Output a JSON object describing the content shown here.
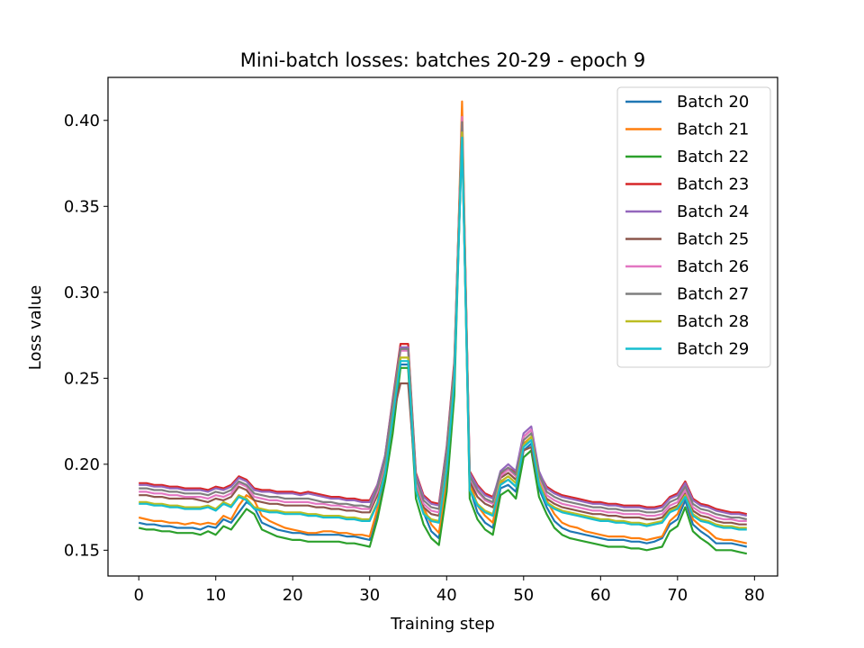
{
  "chart_data": {
    "type": "line",
    "title": "Mini-batch losses: batches 20-29 - epoch 9",
    "xlabel": "Training step",
    "ylabel": "Loss value",
    "xlim": [
      -4,
      83
    ],
    "ylim": [
      0.135,
      0.425
    ],
    "xticks": [
      0,
      10,
      20,
      30,
      40,
      50,
      60,
      70,
      80
    ],
    "yticks": [
      0.15,
      0.2,
      0.25,
      0.3,
      0.35,
      0.4
    ],
    "xtick_labels": [
      "0",
      "10",
      "20",
      "30",
      "40",
      "50",
      "60",
      "70",
      "80"
    ],
    "ytick_labels": [
      "0.15",
      "0.20",
      "0.25",
      "0.30",
      "0.35",
      "0.40"
    ],
    "legend_position": "top-right",
    "grid": false,
    "x": [
      0,
      1,
      2,
      3,
      4,
      5,
      6,
      7,
      8,
      9,
      10,
      11,
      12,
      13,
      14,
      15,
      16,
      17,
      18,
      19,
      20,
      21,
      22,
      23,
      24,
      25,
      26,
      27,
      28,
      29,
      30,
      31,
      32,
      33,
      34,
      35,
      36,
      37,
      38,
      39,
      40,
      41,
      42,
      43,
      44,
      45,
      46,
      47,
      48,
      49,
      50,
      51,
      52,
      53,
      54,
      55,
      56,
      57,
      58,
      59,
      60,
      61,
      62,
      63,
      64,
      65,
      66,
      67,
      68,
      69,
      70,
      71,
      72,
      73,
      74,
      75,
      76,
      77,
      78,
      79
    ],
    "series": [
      {
        "name": "Batch 20",
        "color": "#1f77b4",
        "values": [
          0.166,
          0.165,
          0.165,
          0.164,
          0.164,
          0.163,
          0.163,
          0.163,
          0.162,
          0.164,
          0.163,
          0.168,
          0.166,
          0.172,
          0.178,
          0.175,
          0.166,
          0.164,
          0.162,
          0.161,
          0.16,
          0.16,
          0.159,
          0.159,
          0.159,
          0.159,
          0.159,
          0.158,
          0.158,
          0.157,
          0.156,
          0.172,
          0.196,
          0.222,
          0.258,
          0.258,
          0.188,
          0.172,
          0.161,
          0.157,
          0.188,
          0.246,
          0.404,
          0.186,
          0.172,
          0.166,
          0.163,
          0.186,
          0.188,
          0.184,
          0.208,
          0.212,
          0.186,
          0.175,
          0.167,
          0.163,
          0.161,
          0.16,
          0.159,
          0.158,
          0.157,
          0.156,
          0.156,
          0.156,
          0.155,
          0.155,
          0.154,
          0.155,
          0.157,
          0.165,
          0.168,
          0.179,
          0.165,
          0.161,
          0.158,
          0.154,
          0.154,
          0.154,
          0.153,
          0.152
        ]
      },
      {
        "name": "Batch 21",
        "color": "#ff7f0e",
        "values": [
          0.169,
          0.168,
          0.167,
          0.167,
          0.166,
          0.166,
          0.165,
          0.166,
          0.165,
          0.166,
          0.165,
          0.17,
          0.168,
          0.176,
          0.182,
          0.179,
          0.17,
          0.167,
          0.165,
          0.163,
          0.162,
          0.161,
          0.16,
          0.16,
          0.161,
          0.161,
          0.16,
          0.16,
          0.159,
          0.159,
          0.158,
          0.174,
          0.198,
          0.223,
          0.262,
          0.262,
          0.191,
          0.175,
          0.165,
          0.16,
          0.19,
          0.25,
          0.411,
          0.19,
          0.176,
          0.17,
          0.166,
          0.189,
          0.191,
          0.187,
          0.212,
          0.216,
          0.19,
          0.179,
          0.171,
          0.166,
          0.164,
          0.163,
          0.161,
          0.16,
          0.159,
          0.158,
          0.158,
          0.158,
          0.157,
          0.157,
          0.156,
          0.157,
          0.158,
          0.167,
          0.171,
          0.182,
          0.168,
          0.164,
          0.161,
          0.157,
          0.156,
          0.156,
          0.155,
          0.154
        ]
      },
      {
        "name": "Batch 22",
        "color": "#2ca02c",
        "values": [
          0.163,
          0.162,
          0.162,
          0.161,
          0.161,
          0.16,
          0.16,
          0.16,
          0.159,
          0.161,
          0.159,
          0.164,
          0.162,
          0.168,
          0.174,
          0.171,
          0.162,
          0.16,
          0.158,
          0.157,
          0.156,
          0.156,
          0.155,
          0.155,
          0.155,
          0.155,
          0.155,
          0.154,
          0.154,
          0.153,
          0.152,
          0.168,
          0.19,
          0.218,
          0.256,
          0.256,
          0.18,
          0.165,
          0.157,
          0.153,
          0.184,
          0.24,
          0.396,
          0.18,
          0.168,
          0.162,
          0.159,
          0.182,
          0.185,
          0.18,
          0.204,
          0.208,
          0.181,
          0.171,
          0.163,
          0.159,
          0.157,
          0.156,
          0.155,
          0.154,
          0.153,
          0.152,
          0.152,
          0.152,
          0.151,
          0.151,
          0.15,
          0.151,
          0.152,
          0.161,
          0.164,
          0.175,
          0.161,
          0.157,
          0.154,
          0.15,
          0.15,
          0.15,
          0.149,
          0.148
        ]
      },
      {
        "name": "Batch 23",
        "color": "#d62728",
        "values": [
          0.189,
          0.189,
          0.188,
          0.188,
          0.187,
          0.187,
          0.186,
          0.186,
          0.186,
          0.185,
          0.187,
          0.186,
          0.188,
          0.193,
          0.191,
          0.186,
          0.185,
          0.185,
          0.184,
          0.184,
          0.184,
          0.183,
          0.184,
          0.183,
          0.182,
          0.181,
          0.181,
          0.18,
          0.18,
          0.179,
          0.179,
          0.188,
          0.205,
          0.238,
          0.27,
          0.27,
          0.195,
          0.182,
          0.178,
          0.177,
          0.21,
          0.26,
          0.4,
          0.196,
          0.188,
          0.183,
          0.181,
          0.194,
          0.198,
          0.195,
          0.216,
          0.22,
          0.195,
          0.187,
          0.184,
          0.182,
          0.181,
          0.18,
          0.179,
          0.178,
          0.178,
          0.177,
          0.177,
          0.176,
          0.176,
          0.176,
          0.175,
          0.175,
          0.176,
          0.181,
          0.183,
          0.19,
          0.18,
          0.177,
          0.176,
          0.174,
          0.173,
          0.172,
          0.172,
          0.171
        ]
      },
      {
        "name": "Batch 24",
        "color": "#9467bd",
        "values": [
          0.188,
          0.188,
          0.187,
          0.187,
          0.186,
          0.186,
          0.185,
          0.185,
          0.185,
          0.184,
          0.186,
          0.185,
          0.187,
          0.192,
          0.19,
          0.185,
          0.184,
          0.184,
          0.183,
          0.183,
          0.183,
          0.182,
          0.183,
          0.182,
          0.181,
          0.18,
          0.18,
          0.179,
          0.179,
          0.178,
          0.178,
          0.188,
          0.205,
          0.237,
          0.268,
          0.268,
          0.194,
          0.181,
          0.177,
          0.176,
          0.209,
          0.258,
          0.398,
          0.195,
          0.187,
          0.182,
          0.18,
          0.196,
          0.2,
          0.196,
          0.218,
          0.222,
          0.196,
          0.186,
          0.183,
          0.181,
          0.18,
          0.179,
          0.178,
          0.177,
          0.177,
          0.176,
          0.176,
          0.175,
          0.175,
          0.175,
          0.174,
          0.174,
          0.175,
          0.18,
          0.182,
          0.189,
          0.179,
          0.176,
          0.175,
          0.173,
          0.172,
          0.171,
          0.171,
          0.17
        ]
      },
      {
        "name": "Batch 25",
        "color": "#8c564b",
        "values": [
          0.182,
          0.182,
          0.181,
          0.181,
          0.18,
          0.18,
          0.18,
          0.18,
          0.179,
          0.178,
          0.18,
          0.179,
          0.181,
          0.187,
          0.185,
          0.179,
          0.178,
          0.177,
          0.177,
          0.176,
          0.176,
          0.176,
          0.176,
          0.175,
          0.175,
          0.174,
          0.174,
          0.173,
          0.173,
          0.172,
          0.172,
          0.182,
          0.198,
          0.228,
          0.247,
          0.247,
          0.188,
          0.175,
          0.171,
          0.17,
          0.204,
          0.252,
          0.39,
          0.19,
          0.181,
          0.177,
          0.175,
          0.192,
          0.195,
          0.191,
          0.208,
          0.21,
          0.188,
          0.18,
          0.177,
          0.175,
          0.174,
          0.173,
          0.172,
          0.171,
          0.171,
          0.17,
          0.17,
          0.169,
          0.169,
          0.169,
          0.168,
          0.168,
          0.169,
          0.174,
          0.176,
          0.183,
          0.173,
          0.17,
          0.169,
          0.167,
          0.166,
          0.166,
          0.165,
          0.165
        ]
      },
      {
        "name": "Batch 26",
        "color": "#e377c2",
        "values": [
          0.184,
          0.184,
          0.183,
          0.183,
          0.182,
          0.182,
          0.181,
          0.181,
          0.181,
          0.18,
          0.182,
          0.181,
          0.183,
          0.189,
          0.187,
          0.181,
          0.18,
          0.179,
          0.179,
          0.178,
          0.178,
          0.178,
          0.178,
          0.177,
          0.177,
          0.176,
          0.176,
          0.175,
          0.175,
          0.174,
          0.174,
          0.184,
          0.201,
          0.233,
          0.266,
          0.266,
          0.19,
          0.177,
          0.173,
          0.172,
          0.206,
          0.256,
          0.402,
          0.192,
          0.184,
          0.179,
          0.177,
          0.193,
          0.197,
          0.193,
          0.216,
          0.22,
          0.193,
          0.182,
          0.179,
          0.177,
          0.176,
          0.175,
          0.174,
          0.173,
          0.173,
          0.172,
          0.172,
          0.171,
          0.171,
          0.171,
          0.17,
          0.17,
          0.171,
          0.176,
          0.178,
          0.185,
          0.175,
          0.172,
          0.171,
          0.169,
          0.168,
          0.168,
          0.167,
          0.167
        ]
      },
      {
        "name": "Batch 27",
        "color": "#7f7f7f",
        "values": [
          0.186,
          0.186,
          0.185,
          0.185,
          0.184,
          0.184,
          0.183,
          0.183,
          0.183,
          0.182,
          0.184,
          0.183,
          0.185,
          0.19,
          0.188,
          0.183,
          0.182,
          0.181,
          0.181,
          0.18,
          0.18,
          0.18,
          0.18,
          0.179,
          0.178,
          0.178,
          0.177,
          0.177,
          0.176,
          0.176,
          0.175,
          0.186,
          0.203,
          0.235,
          0.267,
          0.267,
          0.192,
          0.179,
          0.175,
          0.174,
          0.207,
          0.257,
          0.399,
          0.193,
          0.185,
          0.18,
          0.178,
          0.195,
          0.198,
          0.194,
          0.214,
          0.218,
          0.194,
          0.184,
          0.181,
          0.179,
          0.178,
          0.177,
          0.176,
          0.175,
          0.175,
          0.174,
          0.174,
          0.173,
          0.173,
          0.173,
          0.172,
          0.172,
          0.173,
          0.178,
          0.18,
          0.187,
          0.177,
          0.174,
          0.173,
          0.171,
          0.17,
          0.169,
          0.169,
          0.168
        ]
      },
      {
        "name": "Batch 28",
        "color": "#bcbd22",
        "values": [
          0.178,
          0.178,
          0.177,
          0.177,
          0.176,
          0.176,
          0.175,
          0.175,
          0.175,
          0.176,
          0.174,
          0.178,
          0.176,
          0.182,
          0.18,
          0.175,
          0.174,
          0.173,
          0.173,
          0.172,
          0.172,
          0.172,
          0.171,
          0.171,
          0.17,
          0.17,
          0.17,
          0.169,
          0.169,
          0.168,
          0.168,
          0.178,
          0.196,
          0.228,
          0.262,
          0.262,
          0.186,
          0.172,
          0.168,
          0.167,
          0.198,
          0.25,
          0.393,
          0.186,
          0.177,
          0.173,
          0.171,
          0.19,
          0.193,
          0.189,
          0.211,
          0.216,
          0.19,
          0.178,
          0.175,
          0.173,
          0.172,
          0.171,
          0.17,
          0.169,
          0.168,
          0.168,
          0.167,
          0.167,
          0.166,
          0.166,
          0.165,
          0.166,
          0.167,
          0.173,
          0.175,
          0.182,
          0.171,
          0.168,
          0.167,
          0.165,
          0.164,
          0.164,
          0.163,
          0.163
        ]
      },
      {
        "name": "Batch 29",
        "color": "#17becf",
        "values": [
          0.177,
          0.177,
          0.176,
          0.176,
          0.175,
          0.175,
          0.174,
          0.174,
          0.174,
          0.175,
          0.173,
          0.177,
          0.175,
          0.181,
          0.179,
          0.174,
          0.173,
          0.172,
          0.172,
          0.171,
          0.171,
          0.171,
          0.17,
          0.17,
          0.169,
          0.169,
          0.169,
          0.168,
          0.168,
          0.167,
          0.167,
          0.177,
          0.195,
          0.227,
          0.26,
          0.26,
          0.185,
          0.171,
          0.167,
          0.166,
          0.197,
          0.248,
          0.39,
          0.185,
          0.176,
          0.172,
          0.17,
          0.188,
          0.191,
          0.187,
          0.21,
          0.214,
          0.188,
          0.177,
          0.174,
          0.172,
          0.171,
          0.17,
          0.169,
          0.168,
          0.167,
          0.167,
          0.166,
          0.166,
          0.165,
          0.165,
          0.164,
          0.165,
          0.166,
          0.172,
          0.174,
          0.181,
          0.17,
          0.167,
          0.166,
          0.164,
          0.163,
          0.163,
          0.162,
          0.162
        ]
      }
    ]
  }
}
